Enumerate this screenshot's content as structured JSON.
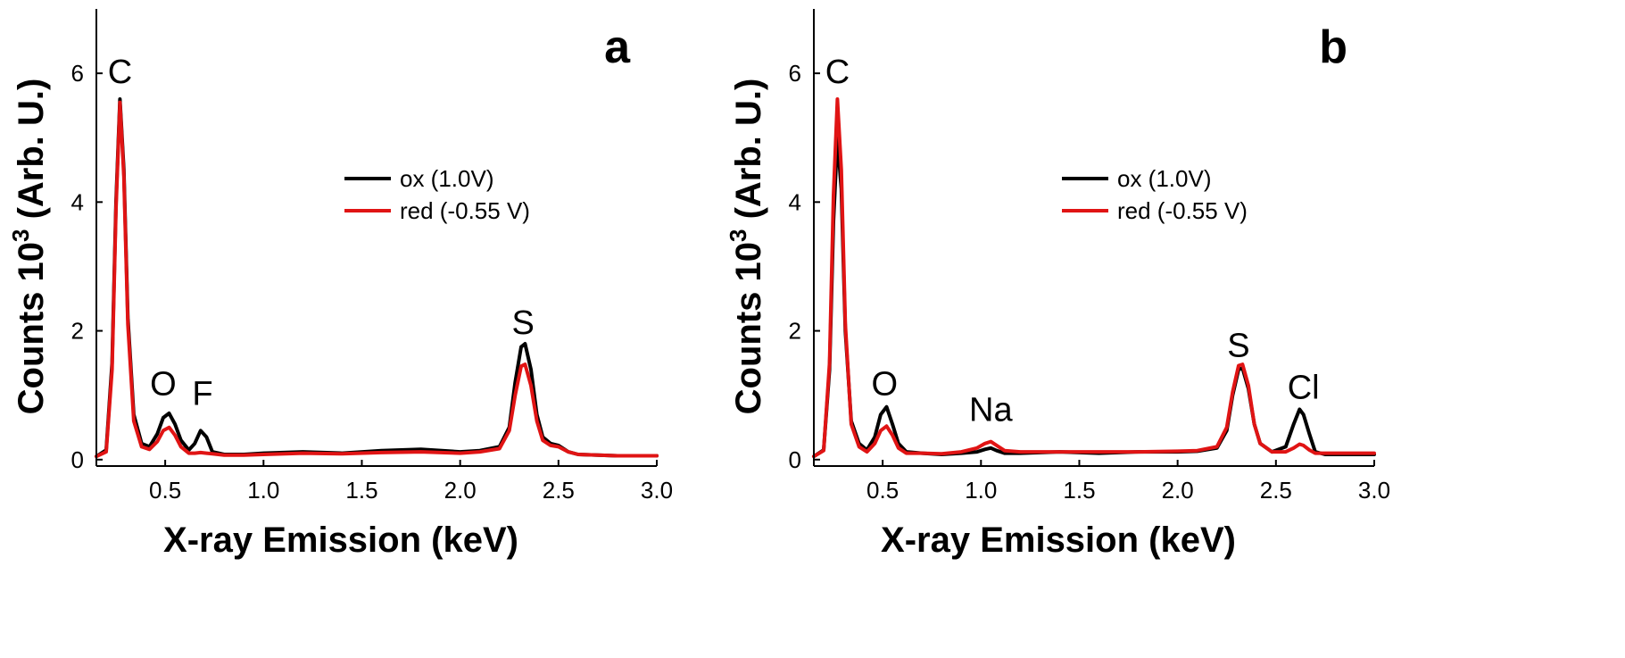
{
  "chart_data": [
    {
      "type": "line",
      "panel_label": "a",
      "xlabel": "X-ray Emission (keV)",
      "ylabel": "Counts 10",
      "ylabel_sup": "3",
      "ylabel_suffix": " (Arb. U.)",
      "xlim": [
        0.15,
        3.0
      ],
      "ylim": [
        -0.1,
        7.0
      ],
      "xticks": [
        0.5,
        1.0,
        1.5,
        2.0,
        2.5,
        3.0
      ],
      "xtick_labels": [
        "0.5",
        "1.0",
        "1.5",
        "2.0",
        "2.5",
        "3.0"
      ],
      "yticks": [
        0,
        2,
        4,
        6
      ],
      "ytick_labels": [
        "0",
        "2",
        "4",
        "6"
      ],
      "legend": [
        "ox (1.0V)",
        "red (-0.55 V)"
      ],
      "legend_position": "center-right",
      "annotations": [
        {
          "text": "C",
          "x": 0.27,
          "y": 5.85
        },
        {
          "text": "O",
          "x": 0.49,
          "y": 1.0
        },
        {
          "text": "F",
          "x": 0.69,
          "y": 0.85
        },
        {
          "text": "S",
          "x": 2.32,
          "y": 1.95
        }
      ],
      "series": [
        {
          "name": "ox (1.0V)",
          "color": "#000000",
          "x": [
            0.15,
            0.2,
            0.23,
            0.25,
            0.27,
            0.29,
            0.31,
            0.34,
            0.38,
            0.42,
            0.46,
            0.49,
            0.52,
            0.55,
            0.58,
            0.62,
            0.65,
            0.68,
            0.71,
            0.74,
            0.8,
            0.9,
            1.0,
            1.2,
            1.4,
            1.6,
            1.8,
            2.0,
            2.1,
            2.2,
            2.25,
            2.28,
            2.31,
            2.33,
            2.36,
            2.39,
            2.42,
            2.46,
            2.5,
            2.55,
            2.6,
            2.7,
            2.8,
            3.0
          ],
          "y": [
            0.05,
            0.15,
            1.5,
            4.0,
            5.6,
            4.5,
            2.2,
            0.7,
            0.25,
            0.2,
            0.4,
            0.65,
            0.72,
            0.55,
            0.3,
            0.15,
            0.25,
            0.45,
            0.35,
            0.12,
            0.08,
            0.08,
            0.1,
            0.12,
            0.1,
            0.14,
            0.16,
            0.12,
            0.14,
            0.2,
            0.5,
            1.2,
            1.75,
            1.8,
            1.4,
            0.7,
            0.35,
            0.25,
            0.22,
            0.12,
            0.08,
            0.07,
            0.06,
            0.06
          ]
        },
        {
          "name": "red (-0.55 V)",
          "color": "#e01414",
          "x": [
            0.15,
            0.2,
            0.23,
            0.25,
            0.27,
            0.29,
            0.31,
            0.34,
            0.38,
            0.42,
            0.46,
            0.49,
            0.52,
            0.55,
            0.58,
            0.62,
            0.65,
            0.68,
            0.71,
            0.74,
            0.8,
            0.9,
            1.0,
            1.2,
            1.4,
            1.6,
            1.8,
            2.0,
            2.1,
            2.2,
            2.25,
            2.28,
            2.31,
            2.33,
            2.36,
            2.39,
            2.42,
            2.46,
            2.5,
            2.55,
            2.6,
            2.7,
            2.8,
            3.0
          ],
          "y": [
            0.05,
            0.12,
            1.4,
            3.9,
            5.55,
            4.4,
            2.1,
            0.6,
            0.2,
            0.16,
            0.28,
            0.45,
            0.5,
            0.38,
            0.2,
            0.1,
            0.1,
            0.11,
            0.1,
            0.09,
            0.07,
            0.07,
            0.08,
            0.1,
            0.09,
            0.11,
            0.12,
            0.1,
            0.12,
            0.17,
            0.45,
            1.0,
            1.45,
            1.48,
            1.15,
            0.6,
            0.3,
            0.22,
            0.2,
            0.12,
            0.08,
            0.07,
            0.06,
            0.06
          ]
        }
      ]
    },
    {
      "type": "line",
      "panel_label": "b",
      "xlabel": "X-ray Emission (keV)",
      "ylabel": "Counts 10",
      "ylabel_sup": "3",
      "ylabel_suffix": " (Arb. U.)",
      "xlim": [
        0.15,
        3.0
      ],
      "ylim": [
        -0.1,
        7.0
      ],
      "xticks": [
        0.5,
        1.0,
        1.5,
        2.0,
        2.5,
        3.0
      ],
      "xtick_labels": [
        "0.5",
        "1.0",
        "1.5",
        "2.0",
        "2.5",
        "3.0"
      ],
      "yticks": [
        0,
        2,
        4,
        6
      ],
      "ytick_labels": [
        "0",
        "2",
        "4",
        "6"
      ],
      "legend": [
        "ox (1.0V)",
        "red (-0.55 V)"
      ],
      "legend_position": "center-right",
      "annotations": [
        {
          "text": "C",
          "x": 0.27,
          "y": 5.85
        },
        {
          "text": "O",
          "x": 0.51,
          "y": 1.0
        },
        {
          "text": "Na",
          "x": 1.05,
          "y": 0.6
        },
        {
          "text": "S",
          "x": 2.31,
          "y": 1.6
        },
        {
          "text": "Cl",
          "x": 2.64,
          "y": 0.95
        }
      ],
      "series": [
        {
          "name": "ox (1.0V)",
          "color": "#000000",
          "x": [
            0.15,
            0.2,
            0.23,
            0.25,
            0.27,
            0.29,
            0.31,
            0.34,
            0.38,
            0.42,
            0.46,
            0.49,
            0.52,
            0.55,
            0.58,
            0.62,
            0.7,
            0.8,
            0.9,
            0.98,
            1.02,
            1.05,
            1.08,
            1.12,
            1.2,
            1.4,
            1.6,
            1.8,
            2.0,
            2.1,
            2.2,
            2.25,
            2.28,
            2.31,
            2.33,
            2.36,
            2.39,
            2.42,
            2.48,
            2.55,
            2.59,
            2.62,
            2.64,
            2.67,
            2.7,
            2.75,
            2.8,
            3.0
          ],
          "y": [
            0.05,
            0.15,
            1.4,
            3.7,
            5.0,
            4.2,
            2.0,
            0.6,
            0.25,
            0.15,
            0.35,
            0.7,
            0.82,
            0.55,
            0.25,
            0.12,
            0.1,
            0.08,
            0.1,
            0.12,
            0.16,
            0.18,
            0.14,
            0.1,
            0.1,
            0.12,
            0.1,
            0.12,
            0.12,
            0.13,
            0.18,
            0.45,
            1.0,
            1.4,
            1.42,
            1.1,
            0.55,
            0.25,
            0.12,
            0.2,
            0.55,
            0.78,
            0.7,
            0.4,
            0.12,
            0.08,
            0.08,
            0.08
          ]
        },
        {
          "name": "red (-0.55 V)",
          "color": "#e01414",
          "x": [
            0.15,
            0.2,
            0.23,
            0.25,
            0.27,
            0.29,
            0.31,
            0.34,
            0.38,
            0.42,
            0.46,
            0.49,
            0.52,
            0.55,
            0.58,
            0.62,
            0.7,
            0.8,
            0.9,
            0.98,
            1.02,
            1.05,
            1.08,
            1.12,
            1.2,
            1.4,
            1.6,
            1.8,
            2.0,
            2.1,
            2.2,
            2.25,
            2.28,
            2.31,
            2.33,
            2.36,
            2.39,
            2.42,
            2.48,
            2.55,
            2.59,
            2.62,
            2.64,
            2.67,
            2.7,
            2.75,
            2.8,
            3.0
          ],
          "y": [
            0.05,
            0.14,
            1.5,
            4.1,
            5.6,
            4.5,
            2.1,
            0.55,
            0.2,
            0.12,
            0.25,
            0.45,
            0.52,
            0.38,
            0.18,
            0.1,
            0.1,
            0.09,
            0.12,
            0.18,
            0.25,
            0.28,
            0.22,
            0.14,
            0.12,
            0.12,
            0.12,
            0.12,
            0.13,
            0.14,
            0.2,
            0.5,
            1.05,
            1.46,
            1.48,
            1.15,
            0.55,
            0.25,
            0.12,
            0.12,
            0.18,
            0.24,
            0.22,
            0.15,
            0.1,
            0.1,
            0.1,
            0.1
          ]
        }
      ]
    }
  ]
}
